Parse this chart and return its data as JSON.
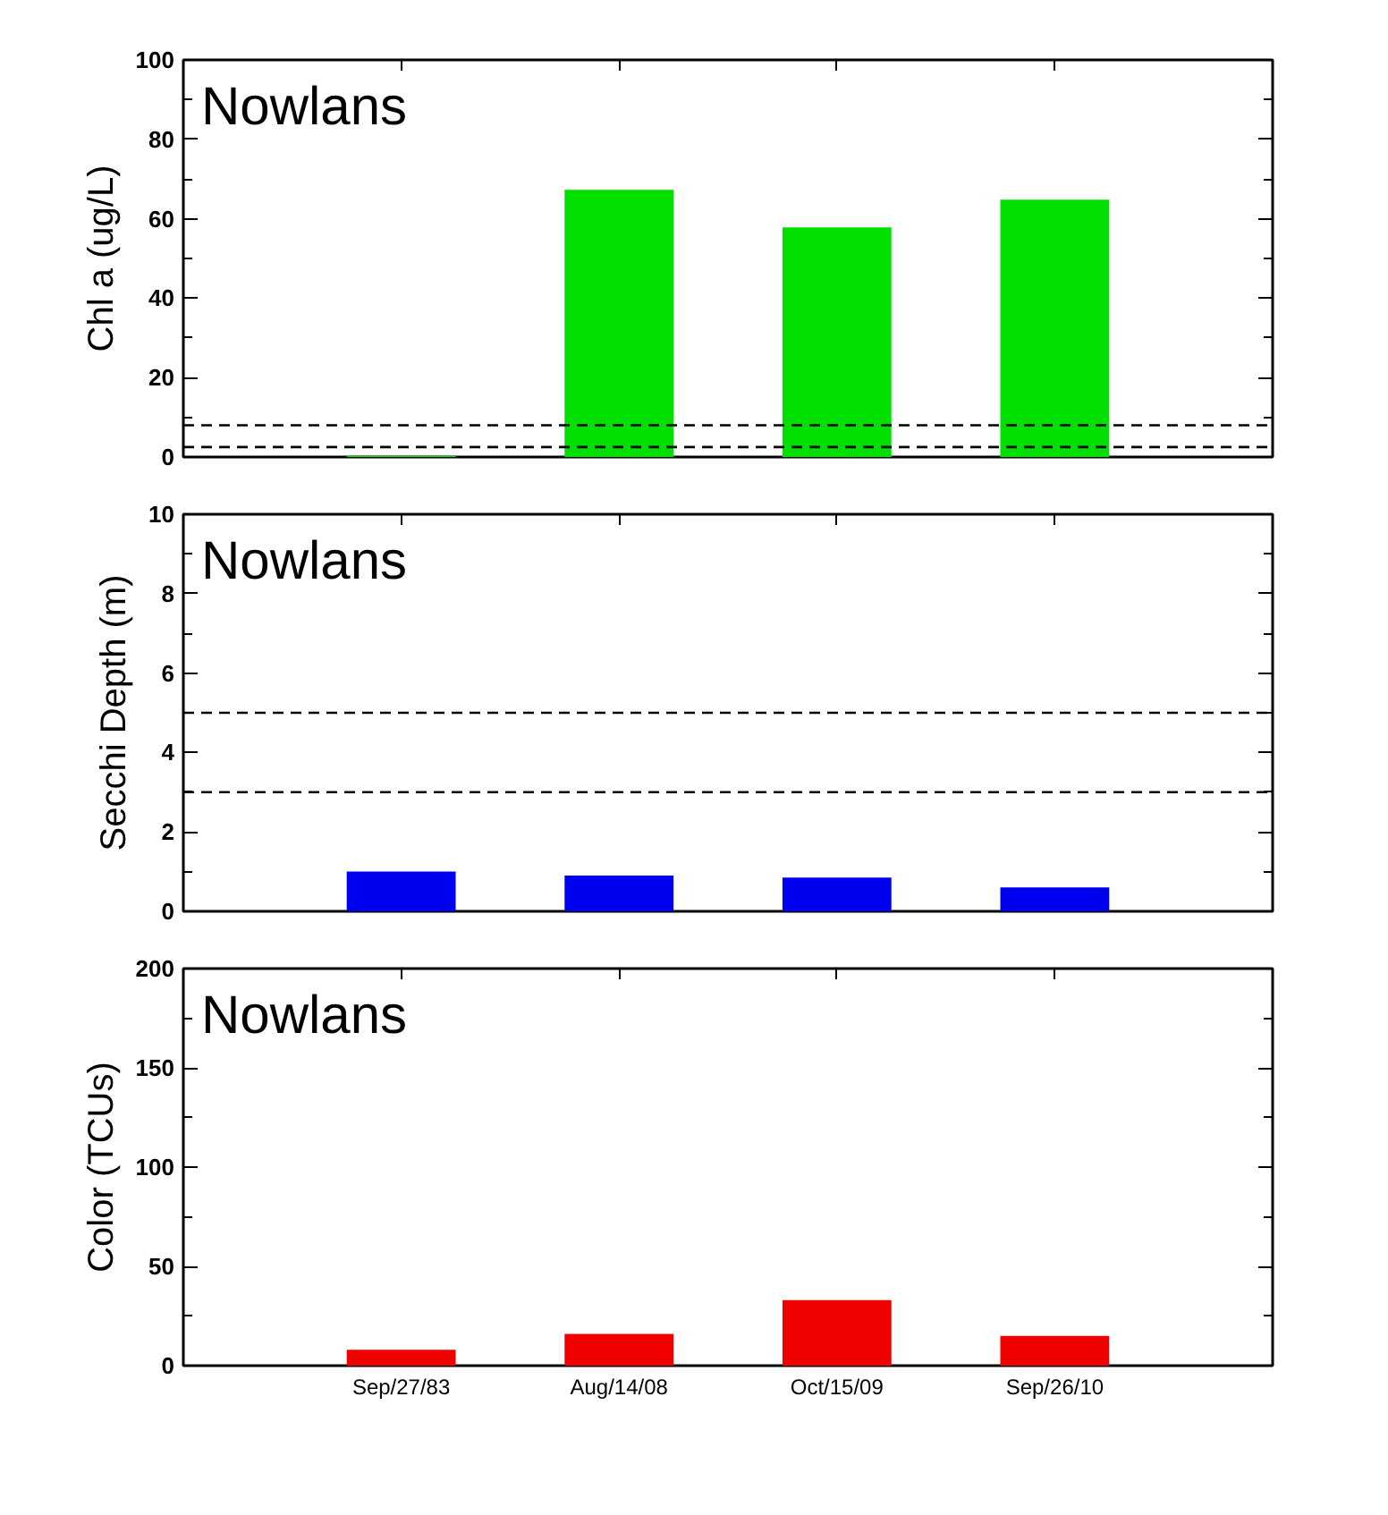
{
  "chart_data": [
    {
      "type": "bar",
      "title": "Nowlans",
      "ylabel": "Chl a (ug/L)",
      "categories": [
        null,
        null,
        null,
        null
      ],
      "values": [
        0.3,
        67.3,
        57.8,
        64.8
      ],
      "color": "#00e000",
      "ylim": [
        0,
        100
      ],
      "yticks": [
        0,
        20,
        40,
        60,
        80,
        100
      ],
      "grid": false,
      "ref_lines": [
        {
          "axis": "y",
          "value": 8,
          "line_style": "dashed",
          "color": "#000000"
        },
        {
          "axis": "y",
          "value": 2.5,
          "line_style": "dashed",
          "color": "#000000"
        }
      ]
    },
    {
      "type": "bar",
      "title": "Nowlans",
      "ylabel": "Secchi Depth (m)",
      "categories": [
        null,
        null,
        null,
        null
      ],
      "values": [
        1.0,
        0.9,
        0.85,
        0.6
      ],
      "color": "#0000f0",
      "ylim": [
        0,
        10
      ],
      "yticks": [
        0,
        2,
        4,
        6,
        8,
        10
      ],
      "grid": false,
      "ref_lines": [
        {
          "axis": "y",
          "value": 5,
          "line_style": "dashed",
          "color": "#000000"
        },
        {
          "axis": "y",
          "value": 3,
          "line_style": "dashed",
          "color": "#000000"
        }
      ]
    },
    {
      "type": "bar",
      "title": "Nowlans",
      "ylabel": "Color (TCUs)",
      "categories": [
        "Sep/27/83",
        "Aug/14/08",
        "Oct/15/09",
        "Sep/26/10"
      ],
      "values": [
        8,
        16,
        33,
        15
      ],
      "color": "#f00000",
      "ylim": [
        0,
        200
      ],
      "yticks": [
        0,
        50,
        100,
        150,
        200
      ],
      "grid": false
    }
  ]
}
